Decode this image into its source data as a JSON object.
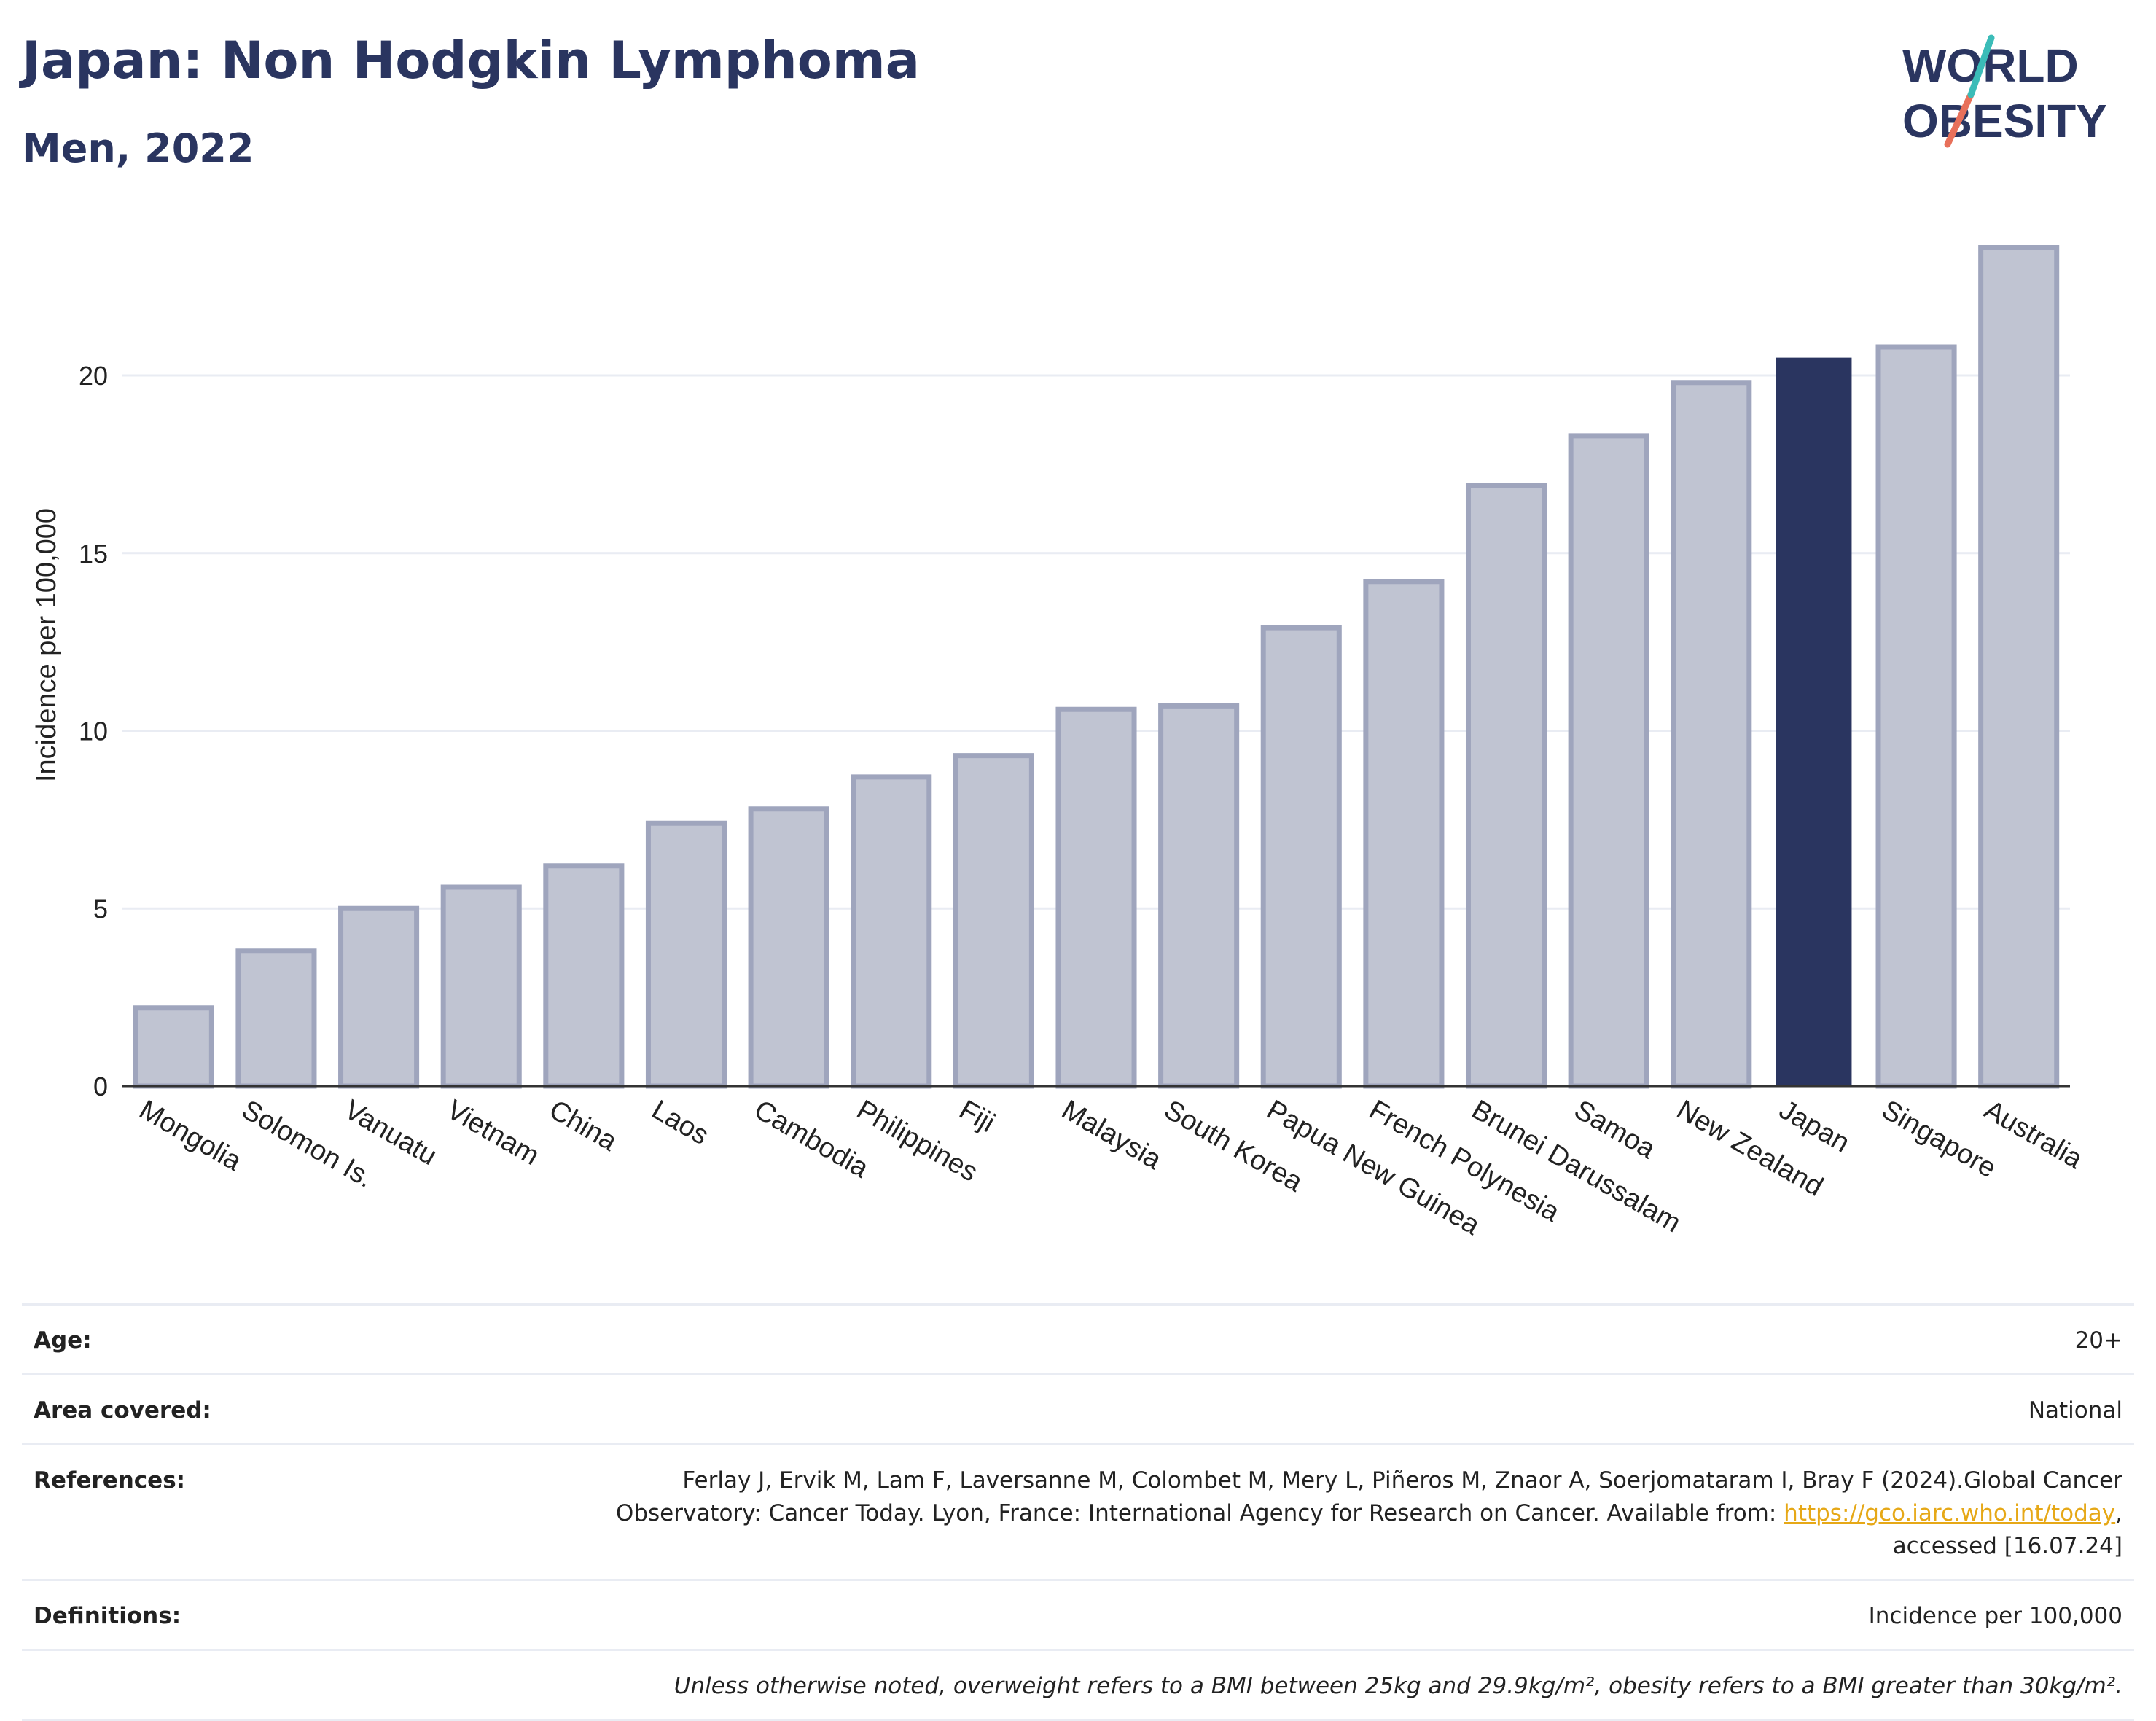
{
  "header": {
    "title": "Japan: Non Hodgkin Lymphoma",
    "subtitle": "Men, 2022"
  },
  "logo": {
    "line1": "WORLD",
    "line2": "OBESITY",
    "colors": {
      "text": "#2a3560",
      "slash_teal": "#3bbcb8",
      "slash_red": "#e8705a"
    }
  },
  "chart_data": {
    "type": "bar",
    "title": "Japan: Non Hodgkin Lymphoma",
    "subtitle": "Men, 2022",
    "ylabel": "Incidence per 100,000",
    "xlabel": "",
    "ylim": [
      0,
      24
    ],
    "yticks": [
      0,
      5,
      10,
      15,
      20
    ],
    "grid": true,
    "categories": [
      "Mongolia",
      "Solomon Is.",
      "Vanuatu",
      "Vietnam",
      "China",
      "Laos",
      "Cambodia",
      "Philippines",
      "Fiji",
      "Malaysia",
      "South Korea",
      "Papua New Guinea",
      "French Polynesia",
      "Brunei Darussalam",
      "Samoa",
      "New Zealand",
      "Japan",
      "Singapore",
      "Australia"
    ],
    "values": [
      2.2,
      3.8,
      5.0,
      5.6,
      6.2,
      7.4,
      7.8,
      8.7,
      9.3,
      10.6,
      10.7,
      12.9,
      14.2,
      16.9,
      18.3,
      19.8,
      20.5,
      20.8,
      23.6
    ],
    "highlight": "Japan",
    "colors": {
      "bar": "#c0c4d2",
      "bar_border": "#9fa5bd",
      "highlight": "#2a3560",
      "grid": "#e9ecf3",
      "axis": "#333333"
    }
  },
  "info_table": {
    "age": {
      "label": "Age:",
      "value": "20+"
    },
    "area": {
      "label": "Area covered:",
      "value": "National"
    },
    "references": {
      "label": "References:",
      "line1": "Ferlay J, Ervik M, Lam F, Laversanne M, Colombet M, Mery L, Piñeros M, Znaor A, Soerjomataram I, Bray F (2024).Global Cancer",
      "line2": "Observatory: Cancer Today. Lyon, France: International Agency for Research on Cancer. Available from: ",
      "link": "https://gco.iarc.who.int/today",
      "line2_end": ",",
      "line3": "accessed [16.07.24]"
    },
    "definitions": {
      "label": "Definitions:",
      "value": "Incidence per 100,000"
    },
    "note": "Unless otherwise noted, overweight refers to a BMI between 25kg and 29.9kg/m², obesity refers to a BMI greater than 30kg/m²."
  }
}
